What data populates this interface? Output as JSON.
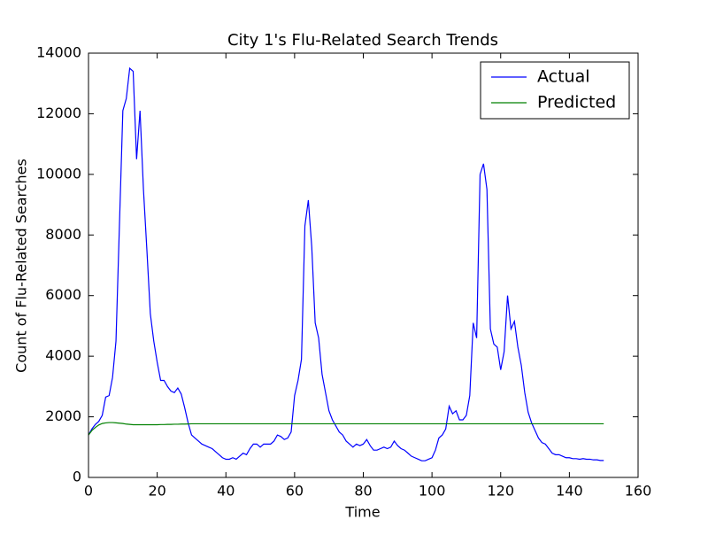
{
  "chart_data": {
    "type": "line",
    "title": "City 1's Flu-Related Search Trends",
    "x_label": "Time",
    "y_label": "Count of Flu-Related Searches",
    "x": [
      0,
      1,
      2,
      3,
      4,
      5,
      6,
      7,
      8,
      9,
      10,
      11,
      12,
      13,
      14,
      15,
      16,
      17,
      18,
      19,
      20,
      21,
      22,
      23,
      24,
      25,
      26,
      27,
      28,
      29,
      30,
      31,
      32,
      33,
      34,
      35,
      36,
      37,
      38,
      39,
      40,
      41,
      42,
      43,
      44,
      45,
      46,
      47,
      48,
      49,
      50,
      51,
      52,
      53,
      54,
      55,
      56,
      57,
      58,
      59,
      60,
      61,
      62,
      63,
      64,
      65,
      66,
      67,
      68,
      69,
      70,
      71,
      72,
      73,
      74,
      75,
      76,
      77,
      78,
      79,
      80,
      81,
      82,
      83,
      84,
      85,
      86,
      87,
      88,
      89,
      90,
      91,
      92,
      93,
      94,
      95,
      96,
      97,
      98,
      99,
      100,
      101,
      102,
      103,
      104,
      105,
      106,
      107,
      108,
      109,
      110,
      111,
      112,
      113,
      114,
      115,
      116,
      117,
      118,
      119,
      120,
      121,
      122,
      123,
      124,
      125,
      126,
      127,
      128,
      129,
      130,
      131,
      132,
      133,
      134,
      135,
      136,
      137,
      138,
      139,
      140,
      141,
      142,
      143,
      144,
      145,
      146,
      147,
      148,
      149,
      150
    ],
    "series": [
      {
        "name": "Actual",
        "color": "#0000ff",
        "values": [
          1400,
          1600,
          1750,
          1850,
          2050,
          2650,
          2700,
          3300,
          4500,
          8300,
          12100,
          12500,
          13500,
          13400,
          10500,
          12100,
          9500,
          7500,
          5400,
          4500,
          3800,
          3200,
          3200,
          3000,
          2850,
          2800,
          2950,
          2750,
          2300,
          1800,
          1400,
          1300,
          1200,
          1100,
          1050,
          1000,
          950,
          850,
          750,
          650,
          600,
          600,
          650,
          600,
          700,
          800,
          750,
          950,
          1100,
          1100,
          1000,
          1100,
          1100,
          1100,
          1200,
          1400,
          1350,
          1250,
          1300,
          1500,
          2700,
          3200,
          3900,
          8300,
          9150,
          7600,
          5100,
          4600,
          3400,
          2800,
          2200,
          1900,
          1700,
          1500,
          1400,
          1200,
          1100,
          1000,
          1100,
          1050,
          1100,
          1250,
          1050,
          900,
          900,
          950,
          1000,
          950,
          1000,
          1200,
          1050,
          950,
          900,
          800,
          700,
          650,
          600,
          550,
          550,
          600,
          650,
          900,
          1300,
          1400,
          1600,
          2350,
          2100,
          2200,
          1900,
          1900,
          2050,
          2700,
          5100,
          4600,
          10000,
          10350,
          9500,
          4900,
          4400,
          4300,
          3550,
          4150,
          6000,
          4900,
          5150,
          4300,
          3700,
          2800,
          2150,
          1800,
          1550,
          1300,
          1150,
          1100,
          950,
          800,
          750,
          750,
          700,
          650,
          650,
          620,
          620,
          600,
          620,
          600,
          600,
          580,
          580,
          560,
          560
        ]
      },
      {
        "name": "Predicted",
        "color": "#008000",
        "values": [
          1400,
          1550,
          1650,
          1730,
          1780,
          1800,
          1810,
          1810,
          1800,
          1790,
          1780,
          1760,
          1750,
          1740,
          1740,
          1740,
          1740,
          1740,
          1740,
          1740,
          1740,
          1745,
          1745,
          1750,
          1750,
          1755,
          1755,
          1760,
          1760,
          1765,
          1770,
          1770,
          1770,
          1770,
          1770,
          1770,
          1770,
          1770,
          1770,
          1770,
          1770,
          1770,
          1770,
          1770,
          1770,
          1770,
          1770,
          1770,
          1770,
          1770,
          1770,
          1770,
          1770,
          1770,
          1770,
          1770,
          1770,
          1770,
          1770,
          1770,
          1770,
          1770,
          1770,
          1770,
          1770,
          1770,
          1770,
          1770,
          1770,
          1770,
          1770,
          1770,
          1770,
          1770,
          1770,
          1770,
          1770,
          1770,
          1770,
          1770,
          1770,
          1770,
          1770,
          1770,
          1770,
          1770,
          1770,
          1770,
          1770,
          1770,
          1770,
          1770,
          1770,
          1770,
          1770,
          1770,
          1770,
          1770,
          1770,
          1770,
          1770,
          1770,
          1770,
          1770,
          1770,
          1770,
          1770,
          1770,
          1770,
          1770,
          1770,
          1770,
          1770,
          1770,
          1770,
          1770,
          1770,
          1770,
          1770,
          1770,
          1770,
          1770,
          1770,
          1770,
          1770,
          1770,
          1770,
          1770,
          1770,
          1770,
          1770,
          1770,
          1770,
          1770,
          1770,
          1770,
          1770,
          1770,
          1770,
          1770,
          1770,
          1770,
          1770,
          1770,
          1770,
          1770,
          1770,
          1770,
          1770,
          1770,
          1770
        ]
      }
    ],
    "xlim": [
      0,
      160
    ],
    "xticks": [
      0,
      20,
      40,
      60,
      80,
      100,
      120,
      140,
      160
    ],
    "ylim": [
      0,
      14000
    ],
    "yticks": [
      0,
      2000,
      4000,
      6000,
      8000,
      10000,
      12000,
      14000
    ],
    "grid": false,
    "legend": "upper right"
  }
}
